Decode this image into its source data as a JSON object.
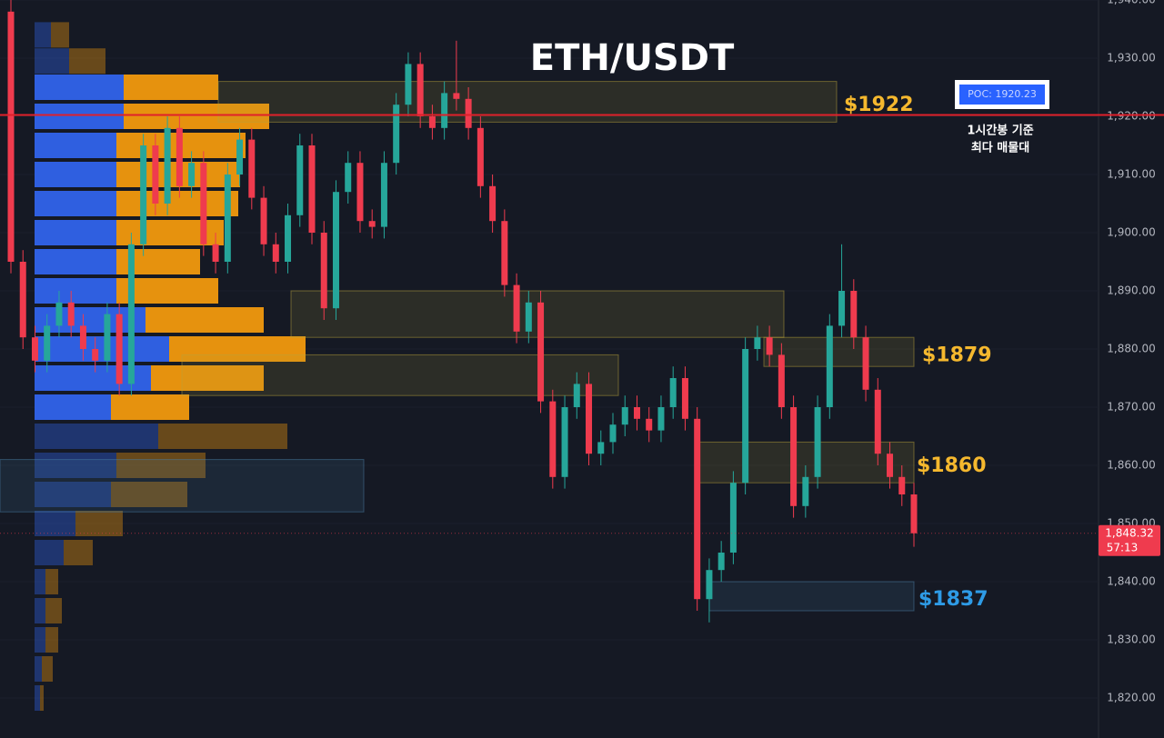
{
  "chart_data": {
    "type": "candlestick",
    "title": "ETH/USDT",
    "ylim": [
      1813.125,
      1940
    ],
    "yticks": [
      {
        "value": 1820,
        "label": "1,820.00"
      },
      {
        "value": 1830,
        "label": "1,830.00"
      },
      {
        "value": 1840,
        "label": "1,840.00"
      },
      {
        "value": 1850,
        "label": "1,850.00"
      },
      {
        "value": 1860,
        "label": "1,860.00"
      },
      {
        "value": 1870,
        "label": "1,870.00"
      },
      {
        "value": 1880,
        "label": "1,880.00"
      },
      {
        "value": 1890,
        "label": "1,890.00"
      },
      {
        "value": 1900,
        "label": "1,900.00"
      },
      {
        "value": 1910,
        "label": "1,910.00"
      },
      {
        "value": 1920,
        "label": "1,920.00"
      },
      {
        "value": 1930,
        "label": "1,930.00"
      },
      {
        "value": 1940,
        "label": "1,940.00"
      }
    ],
    "up_color": "#26a69a",
    "down_color": "#ef3b4e",
    "open": [
      1938,
      1895,
      1882,
      1878,
      1884,
      1888,
      1884,
      1880,
      1878,
      1886,
      1874,
      1898,
      1915,
      1905,
      1918,
      1908,
      1912,
      1898,
      1895,
      1910,
      1916,
      1906,
      1898,
      1895,
      1903,
      1915,
      1900,
      1887,
      1907,
      1912,
      1902,
      1901,
      1912,
      1922,
      1929,
      1920,
      1918,
      1924,
      1923,
      1918,
      1908,
      1902,
      1891,
      1883,
      1888,
      1871,
      1858,
      1870,
      1874,
      1862,
      1864,
      1867,
      1870,
      1868,
      1866,
      1870,
      1875,
      1868,
      1837,
      1842,
      1845,
      1857,
      1880,
      1882,
      1879,
      1870,
      1853,
      1858,
      1870,
      1884,
      1890,
      1882,
      1873,
      1862,
      1858,
      1855
    ],
    "high": [
      1940,
      1897,
      1884,
      1886,
      1890,
      1890,
      1886,
      1882,
      1888,
      1888,
      1900,
      1917,
      1917,
      1920,
      1920,
      1914,
      1914,
      1900,
      1912,
      1918,
      1918,
      1908,
      1900,
      1905,
      1917,
      1917,
      1902,
      1909,
      1914,
      1914,
      1904,
      1914,
      1924,
      1931,
      1931,
      1922,
      1926,
      1933,
      1925,
      1920,
      1910,
      1904,
      1893,
      1890,
      1890,
      1873,
      1872,
      1876,
      1876,
      1866,
      1869,
      1872,
      1872,
      1870,
      1872,
      1877,
      1877,
      1870,
      1844,
      1847,
      1859,
      1882,
      1884,
      1884,
      1881,
      1872,
      1860,
      1872,
      1886,
      1898,
      1892,
      1884,
      1875,
      1864,
      1860,
      1857
    ],
    "low": [
      1893,
      1880,
      1876,
      1876,
      1882,
      1882,
      1878,
      1876,
      1876,
      1872,
      1872,
      1896,
      1903,
      1903,
      1906,
      1906,
      1896,
      1893,
      1893,
      1908,
      1904,
      1896,
      1893,
      1893,
      1901,
      1898,
      1885,
      1885,
      1905,
      1900,
      1899,
      1899,
      1910,
      1920,
      1918,
      1916,
      1916,
      1921,
      1916,
      1906,
      1900,
      1889,
      1881,
      1881,
      1869,
      1856,
      1856,
      1868,
      1860,
      1860,
      1862,
      1865,
      1866,
      1864,
      1864,
      1868,
      1866,
      1835,
      1833,
      1840,
      1843,
      1855,
      1878,
      1877,
      1868,
      1851,
      1851,
      1856,
      1868,
      1882,
      1880,
      1871,
      1860,
      1856,
      1853,
      1846
    ],
    "close": [
      1895,
      1882,
      1878,
      1884,
      1888,
      1884,
      1880,
      1878,
      1886,
      1874,
      1898,
      1915,
      1905,
      1918,
      1908,
      1912,
      1898,
      1895,
      1910,
      1916,
      1906,
      1898,
      1895,
      1903,
      1915,
      1900,
      1887,
      1907,
      1912,
      1902,
      1901,
      1912,
      1922,
      1929,
      1920,
      1918,
      1924,
      1923,
      1918,
      1908,
      1902,
      1891,
      1883,
      1888,
      1871,
      1858,
      1870,
      1874,
      1862,
      1864,
      1867,
      1870,
      1868,
      1866,
      1870,
      1875,
      1868,
      1837,
      1842,
      1845,
      1857,
      1880,
      1882,
      1879,
      1870,
      1853,
      1858,
      1870,
      1884,
      1890,
      1882,
      1873,
      1862,
      1858,
      1855,
      1848.32
    ],
    "last_price_label": "1,848.32",
    "countdown": "57:13",
    "volume_profile": {
      "prices": [
        1934,
        1929.5,
        1925,
        1920,
        1915,
        1910,
        1905,
        1900,
        1895,
        1890,
        1885,
        1880,
        1875,
        1870,
        1865,
        1860,
        1855,
        1850,
        1845,
        1840,
        1835,
        1830,
        1825,
        1820
      ],
      "buy": [
        18,
        38,
        98,
        98,
        90,
        90,
        90,
        90,
        90,
        90,
        122,
        148,
        128,
        84,
        136,
        90,
        84,
        45,
        32,
        12,
        12,
        12,
        8,
        6
      ],
      "sell": [
        20,
        40,
        104,
        160,
        142,
        136,
        134,
        118,
        92,
        112,
        130,
        150,
        124,
        86,
        142,
        98,
        84,
        52,
        32,
        14,
        18,
        14,
        12,
        4
      ],
      "buy_color": "#2f5fe0",
      "sell_color": "#e6920e",
      "value_area": [
        1868,
        1927
      ]
    },
    "zones": [
      {
        "low": 1919,
        "high": 1926,
        "color": "#b8a23a"
      },
      {
        "low": 1882,
        "high": 1890,
        "color": "#b8a23a"
      },
      {
        "low": 1877,
        "high": 1882,
        "color": "#b8a23a"
      },
      {
        "low": 1857,
        "high": 1864,
        "color": "#b8a23a"
      },
      {
        "low": 1835,
        "high": 1840,
        "color": "#4a7fa8"
      },
      {
        "low": 1872,
        "high": 1879,
        "color": "#b8a23a"
      },
      {
        "low": 1852,
        "high": 1861,
        "color": "#4a7fa8"
      }
    ],
    "annotations": [
      {
        "text": "$1922",
        "price": 1922,
        "color": "#f5b82e"
      },
      {
        "text": "$1879",
        "price": 1879,
        "color": "#f5b82e"
      },
      {
        "text": "$1860",
        "price": 1860,
        "color": "#f5b82e"
      },
      {
        "text": "$1837",
        "price": 1837,
        "color": "#2e9be6"
      }
    ],
    "poc": {
      "value": 1920.23,
      "label": "POC: 1920.23",
      "color": "#e0202a",
      "note": [
        "1시간봉 기준",
        "최다 매물대"
      ]
    }
  }
}
